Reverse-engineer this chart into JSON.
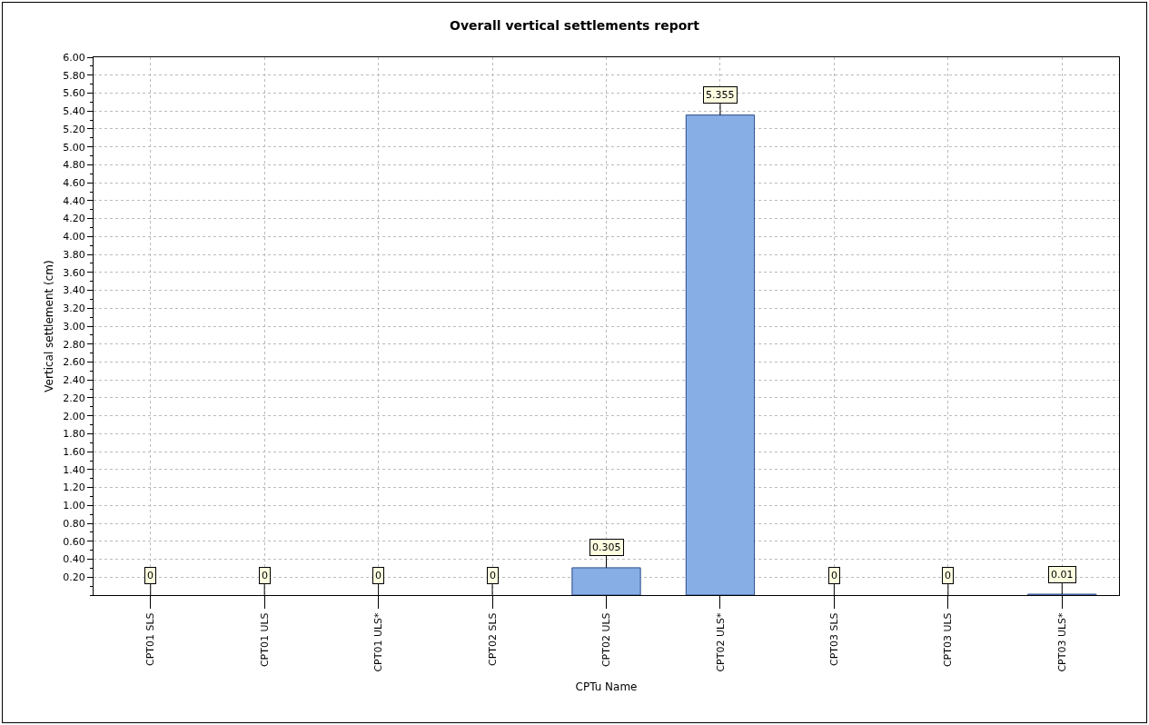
{
  "chart_data": {
    "type": "bar",
    "title": "Overall vertical settlements report",
    "xlabel": "CPTu Name",
    "ylabel": "Vertical settlement (cm)",
    "categories": [
      "CPT01 SLS",
      "CPT01 ULS",
      "CPT01 ULS*",
      "CPT02 SLS",
      "CPT02 ULS",
      "CPT02 ULS*",
      "CPT03 SLS",
      "CPT03 ULS",
      "CPT03 ULS*"
    ],
    "values": [
      0,
      0,
      0,
      0,
      0.305,
      5.355,
      0,
      0,
      0.01
    ],
    "color": "#88aee6",
    "ylim": [
      0,
      6
    ],
    "yticks": [
      {
        "value": 0.2,
        "label": "0.20"
      },
      {
        "value": 0.4,
        "label": "0.40"
      },
      {
        "value": 0.6,
        "label": "0.60"
      },
      {
        "value": 0.8,
        "label": "0.80"
      },
      {
        "value": 1,
        "label": "1.00"
      },
      {
        "value": 1.2,
        "label": "1.20"
      },
      {
        "value": 1.4,
        "label": "1.40"
      },
      {
        "value": 1.6,
        "label": "1.60"
      },
      {
        "value": 1.8,
        "label": "1.80"
      },
      {
        "value": 2,
        "label": "2.00"
      },
      {
        "value": 2.2,
        "label": "2.20"
      },
      {
        "value": 2.4,
        "label": "2.40"
      },
      {
        "value": 2.6,
        "label": "2.60"
      },
      {
        "value": 2.8,
        "label": "2.80"
      },
      {
        "value": 3,
        "label": "3.00"
      },
      {
        "value": 3.2,
        "label": "3.20"
      },
      {
        "value": 3.4,
        "label": "3.40"
      },
      {
        "value": 3.6,
        "label": "3.60"
      },
      {
        "value": 3.8,
        "label": "3.80"
      },
      {
        "value": 4,
        "label": "4.00"
      },
      {
        "value": 4.2,
        "label": "4.20"
      },
      {
        "value": 4.4,
        "label": "4.40"
      },
      {
        "value": 4.6,
        "label": "4.60"
      },
      {
        "value": 4.8,
        "label": "4.80"
      },
      {
        "value": 5,
        "label": "5.00"
      },
      {
        "value": 5.2,
        "label": "5.20"
      },
      {
        "value": 5.4,
        "label": "5.40"
      },
      {
        "value": 5.6,
        "label": "5.60"
      },
      {
        "value": 5.8,
        "label": "5.80"
      },
      {
        "value": 6,
        "label": "6.00"
      }
    ],
    "grid": true,
    "data_labels": true
  }
}
